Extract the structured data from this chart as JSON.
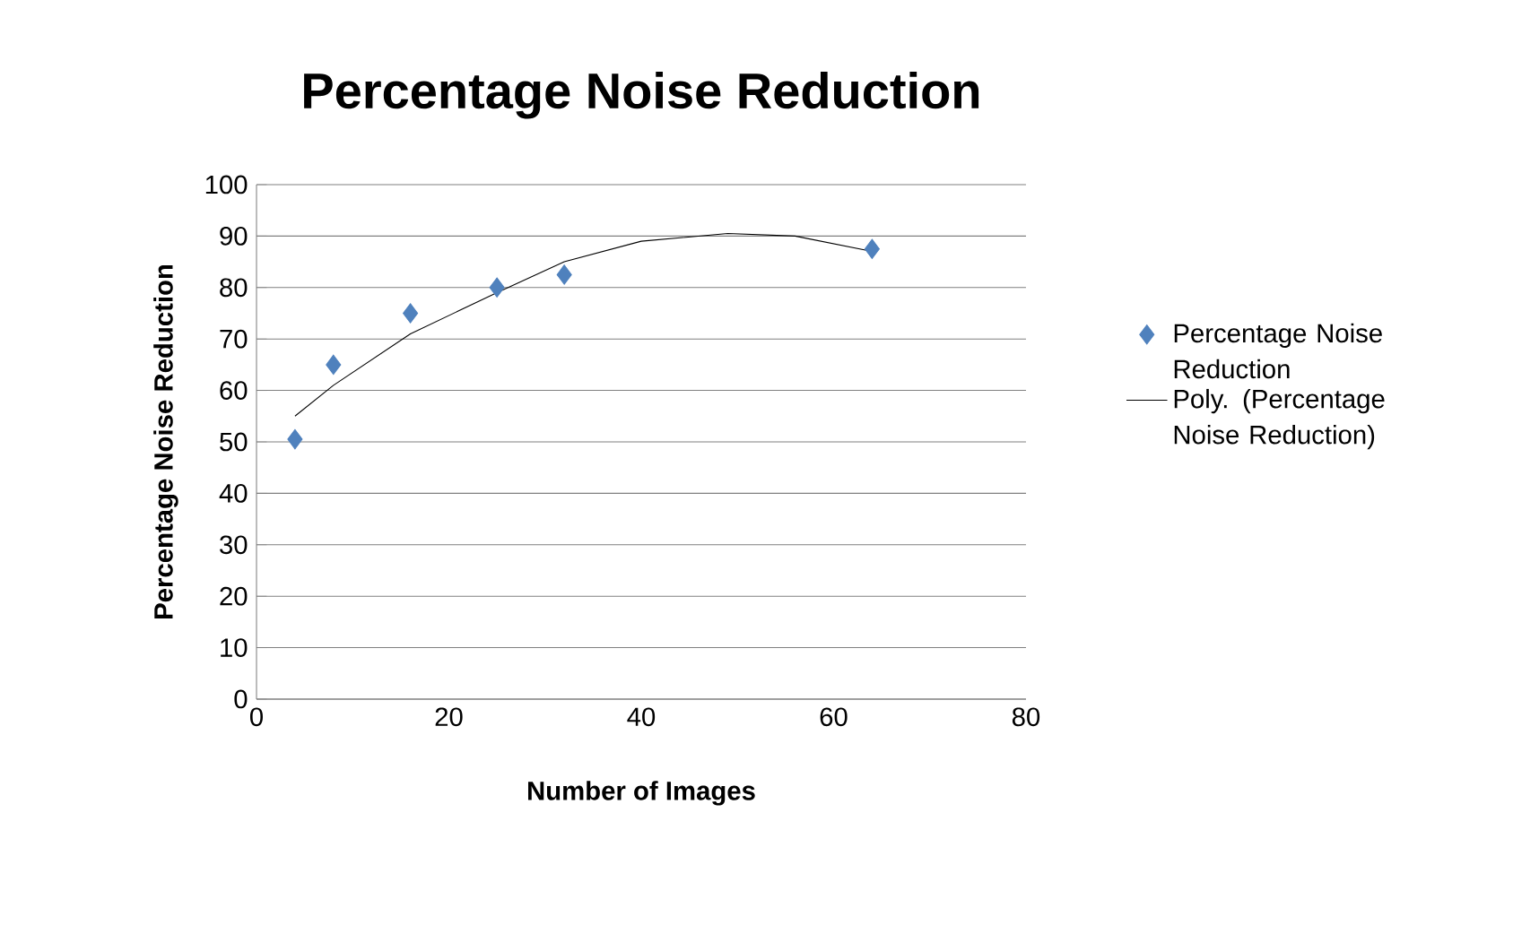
{
  "chart_data": {
    "type": "scatter",
    "title": "Percentage Noise Reduction",
    "xlabel": "Number of Images",
    "ylabel": "Percentage Noise Reduction",
    "xlim": [
      0,
      80
    ],
    "xticks": [
      0,
      20,
      40,
      60,
      80
    ],
    "ylim": [
      0,
      100
    ],
    "yticks": [
      0,
      10,
      20,
      30,
      40,
      50,
      60,
      70,
      80,
      90,
      100
    ],
    "grid": "y",
    "legend": "right",
    "series": [
      {
        "name": "Percentage Noise Reduction",
        "marker": "diamond",
        "color": "#4f81bd",
        "x": [
          4,
          8,
          16,
          25,
          32,
          64
        ],
        "values": [
          50.5,
          65,
          75,
          80,
          82.5,
          87.5
        ]
      },
      {
        "name": "Poly. (Percentage Noise Reduction)",
        "type": "line",
        "marker": "none",
        "line_style": "solid",
        "color": "#000000",
        "x": [
          4,
          8,
          16,
          25,
          32,
          40,
          49,
          56,
          64
        ],
        "values": [
          55,
          61,
          71,
          79,
          85,
          89,
          90.5,
          90,
          87
        ]
      }
    ]
  }
}
